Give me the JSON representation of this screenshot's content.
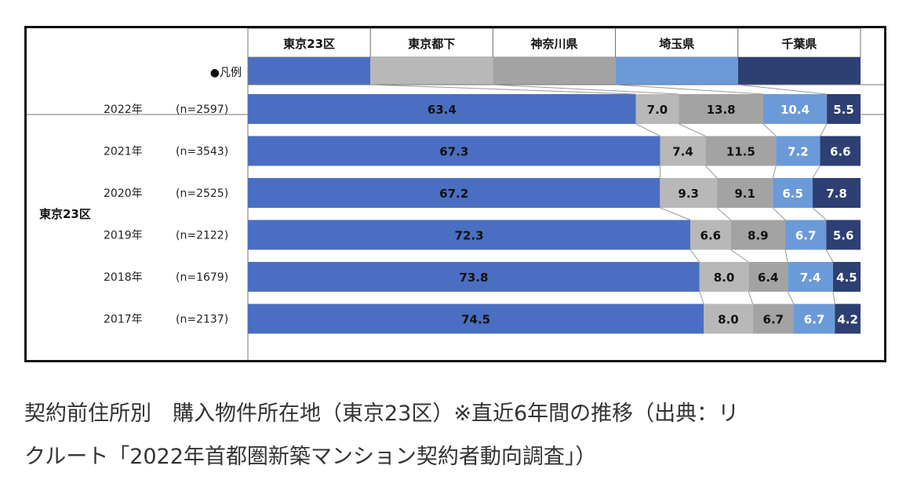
{
  "chart_data": {
    "type": "bar",
    "stacked": "100%",
    "orientation": "horizontal",
    "group_label": "東京23区",
    "legend_marker_label": "●凡例",
    "series": [
      {
        "name": "東京23区",
        "color": "#4a6fc2"
      },
      {
        "name": "東京都下",
        "color": "#b8b8b8"
      },
      {
        "name": "神奈川県",
        "color": "#a3a3a3"
      },
      {
        "name": "埼玉県",
        "color": "#6b9ad8"
      },
      {
        "name": "千葉県",
        "color": "#2d3f73"
      }
    ],
    "rows": [
      {
        "year": "2022年",
        "n": "(n=2597)",
        "values": [
          63.4,
          7.0,
          13.8,
          10.4,
          5.5
        ]
      },
      {
        "year": "2021年",
        "n": "(n=3543)",
        "values": [
          67.3,
          7.4,
          11.5,
          7.2,
          6.6
        ]
      },
      {
        "year": "2020年",
        "n": "(n=2525)",
        "values": [
          67.2,
          9.3,
          9.1,
          6.5,
          7.8
        ]
      },
      {
        "year": "2019年",
        "n": "(n=2122)",
        "values": [
          72.3,
          6.6,
          8.9,
          6.7,
          5.6
        ]
      },
      {
        "year": "2018年",
        "n": "(n=1679)",
        "values": [
          73.8,
          8.0,
          6.4,
          7.4,
          4.5
        ]
      },
      {
        "year": "2017年",
        "n": "(n=2137)",
        "values": [
          74.5,
          8.0,
          6.7,
          6.7,
          4.2
        ]
      }
    ],
    "value_label_colors": [
      "#111111",
      "#111111",
      "#111111",
      "#ffffff",
      "#ffffff"
    ]
  },
  "caption": {
    "line1": "契約前住所別　購入物件所在地（東京23区）※直近6年間の推移（出典：リ",
    "line2": "クルート「2022年首都圏新築マンション契約者動向調査」）"
  }
}
